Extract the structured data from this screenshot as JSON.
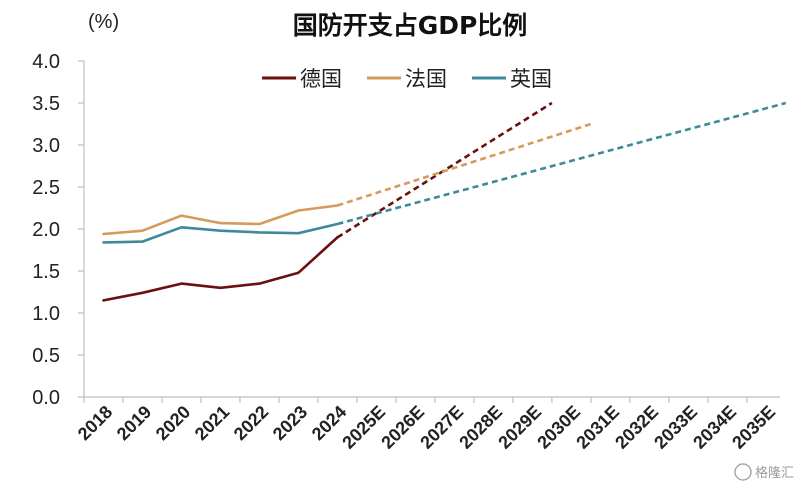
{
  "chart_data": {
    "type": "line",
    "title": "国防开支占GDP比例",
    "unit_label": "(%)",
    "xlabel": "",
    "ylabel": "",
    "ylim": [
      0,
      4.0
    ],
    "yticks": [
      "0.0",
      "0.5",
      "1.0",
      "1.5",
      "2.0",
      "2.5",
      "3.0",
      "3.5",
      "4.0"
    ],
    "categories": [
      "2018",
      "2019",
      "2020",
      "2021",
      "2022",
      "2023",
      "2024",
      "2025E",
      "2026E",
      "2027E",
      "2028E",
      "2029E",
      "2030E",
      "2031E",
      "2032E",
      "2033E",
      "2034E",
      "2035E"
    ],
    "legend_position": "top-center",
    "grid": false,
    "series": [
      {
        "name": "德国",
        "color": "#6b0f0f",
        "actual": [
          1.15,
          1.24,
          1.35,
          1.3,
          1.35,
          1.48,
          1.9
        ],
        "projected": [
          [
            2024,
            1.9
          ],
          [
            2029.5,
            3.5
          ]
        ]
      },
      {
        "name": "法国",
        "color": "#d69a5c",
        "actual": [
          1.94,
          1.98,
          2.16,
          2.07,
          2.06,
          2.22,
          2.28
        ],
        "projected": [
          [
            2024,
            2.28
          ],
          [
            2030.5,
            3.25
          ]
        ]
      },
      {
        "name": "英国",
        "color": "#3e8a9c",
        "actual": [
          1.84,
          1.85,
          2.02,
          1.98,
          1.96,
          1.95,
          2.06
        ],
        "projected": [
          [
            2024,
            2.06
          ],
          [
            2035.5,
            3.5
          ]
        ]
      }
    ]
  },
  "watermark": "格隆汇"
}
